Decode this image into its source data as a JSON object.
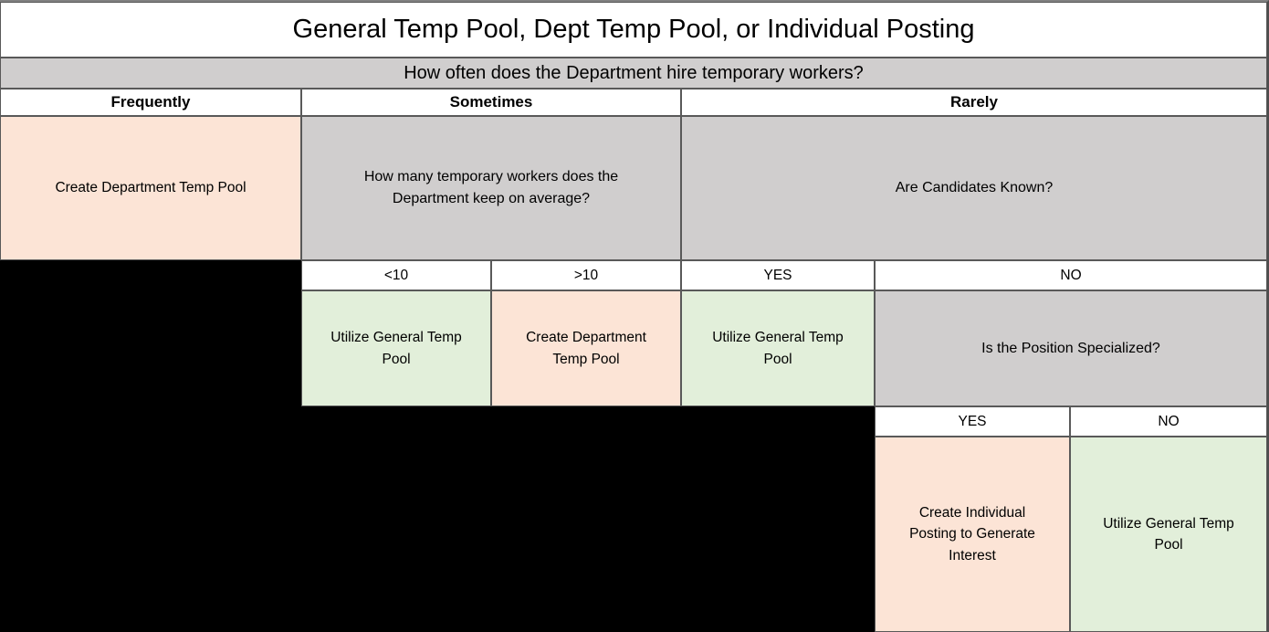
{
  "title": "General Temp Pool, Dept Temp Pool, or Individual Posting",
  "root_question": "How often does the Department hire temporary workers?",
  "branches": {
    "frequently": {
      "label": "Frequently",
      "outcome": "Create Department Temp Pool"
    },
    "sometimes": {
      "label": "Sometimes",
      "question": "How many temporary workers does the Department keep on average?",
      "options": {
        "lt10": {
          "label": "<10",
          "outcome": "Utilize General Temp Pool"
        },
        "gt10": {
          "label": ">10",
          "outcome": "Create Department Temp Pool"
        }
      }
    },
    "rarely": {
      "label": "Rarely",
      "question": "Are Candidates Known?",
      "options": {
        "yes": {
          "label": "YES",
          "outcome": "Utilize General Temp Pool"
        },
        "no": {
          "label": "NO",
          "question": "Is the Position Specialized?",
          "options": {
            "yes": {
              "label": "YES",
              "outcome": "Create Individual Posting to Generate Interest"
            },
            "no": {
              "label": "NO",
              "outcome": "Utilize General Temp Pool"
            }
          }
        }
      }
    }
  },
  "colors": {
    "create_action_bg": "#fce4d6",
    "utilize_action_bg": "#e2efda",
    "question_bg": "#d0cece",
    "header_bg": "#ffffff",
    "empty_bg": "#000000",
    "border": "#595959",
    "text": "#000000"
  }
}
